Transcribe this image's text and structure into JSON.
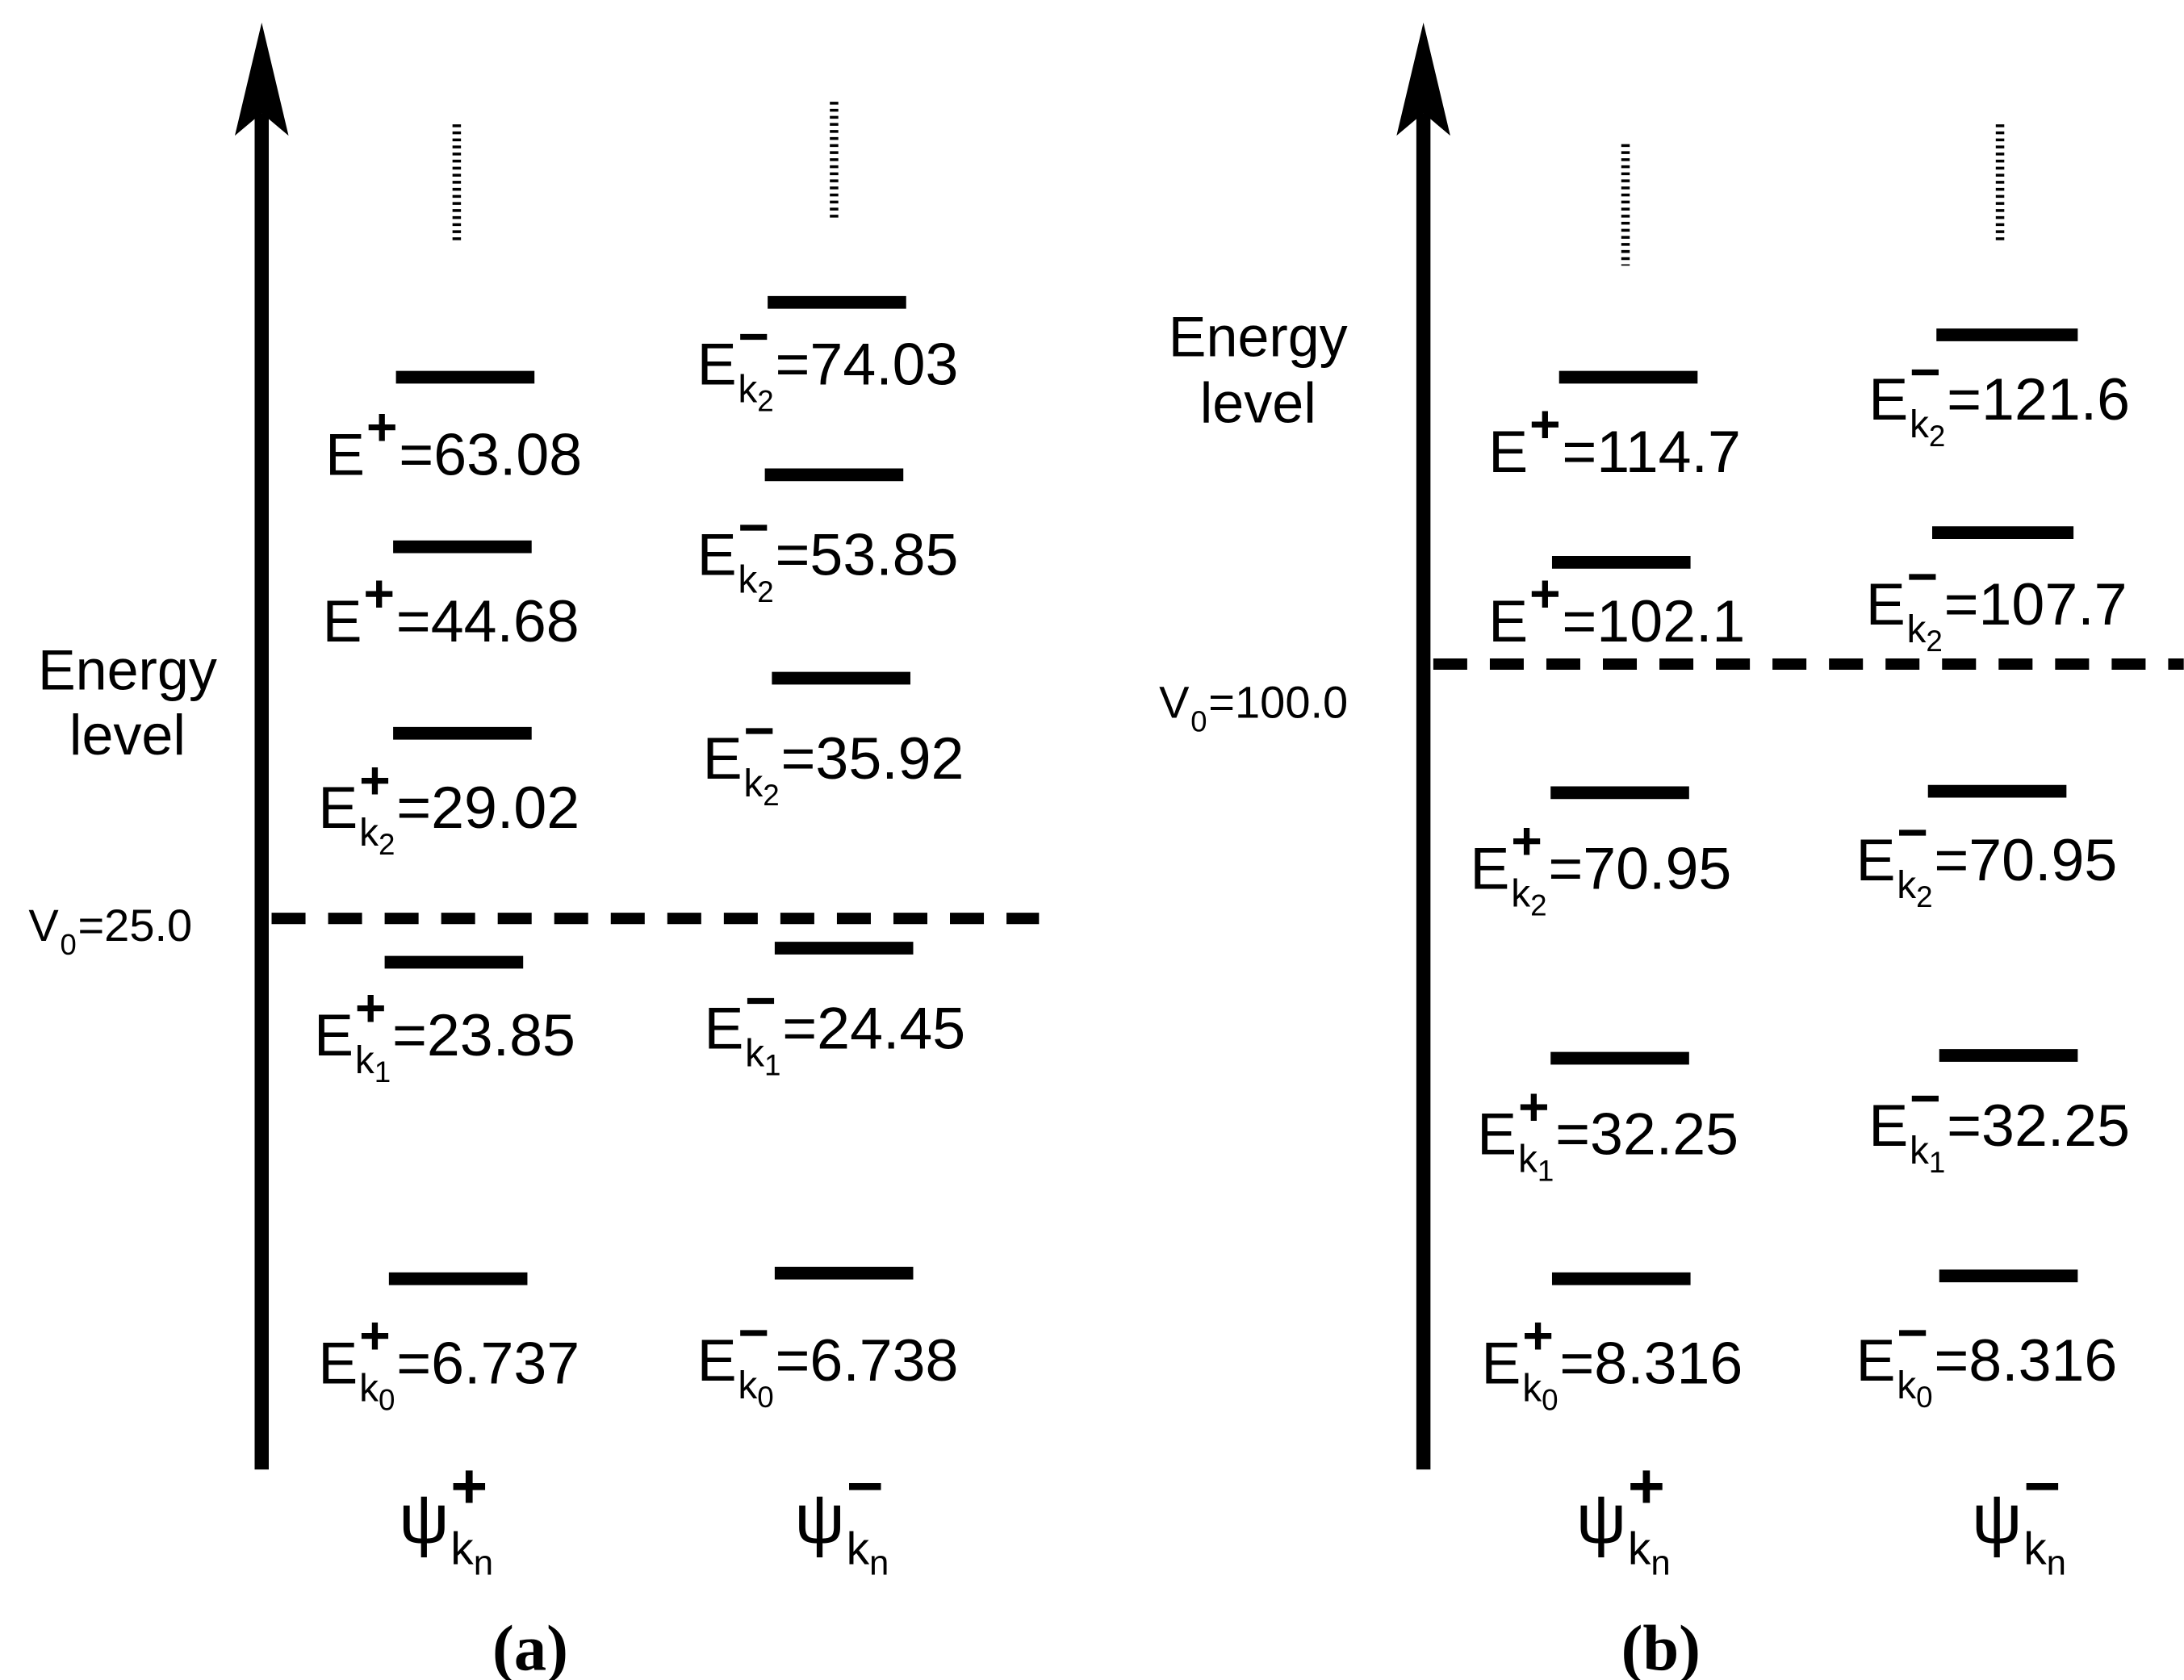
{
  "panels": [
    {
      "label": "(a)",
      "axis_label": [
        "Energy",
        "level"
      ],
      "potential": {
        "symbol": "V",
        "sub": "0",
        "value": "=25.0"
      },
      "columns": [
        {
          "header": {
            "symbol": "ψ",
            "sign": "+",
            "sub": "k",
            "subsub": "n"
          },
          "levels": [
            {
              "symbol": "E",
              "sign": "+",
              "value": "=63.08"
            },
            {
              "symbol": "E",
              "sign": "+",
              "value": "=44.68"
            },
            {
              "symbol": "E",
              "sign": "+",
              "sub": "k",
              "subsub": "2",
              "value": "=29.02"
            },
            {
              "symbol": "E",
              "sign": "+",
              "sub": "k",
              "subsub": "1",
              "value": "=23.85"
            },
            {
              "symbol": "E",
              "sign": "+",
              "sub": "k",
              "subsub": "0",
              "value": "=6.737"
            }
          ]
        },
        {
          "header": {
            "symbol": "ψ",
            "sign": "−",
            "sub": "k",
            "subsub": "n"
          },
          "levels": [
            {
              "symbol": "E",
              "sign": "−",
              "sub": "k",
              "subsub": "2",
              "value": "=74.03"
            },
            {
              "symbol": "E",
              "sign": "−",
              "sub": "k",
              "subsub": "2",
              "value": "=53.85"
            },
            {
              "symbol": "E",
              "sign": "−",
              "sub": "k",
              "subsub": "2",
              "value": "=35.92"
            },
            {
              "symbol": "E",
              "sign": "−",
              "sub": "k",
              "subsub": "1",
              "value": "=24.45"
            },
            {
              "symbol": "E",
              "sign": "−",
              "sub": "k",
              "subsub": "0",
              "value": "=6.738"
            }
          ]
        }
      ]
    },
    {
      "label": "(b)",
      "axis_label": [
        "Energy",
        "level"
      ],
      "potential": {
        "symbol": "V",
        "sub": "0",
        "value": "=100.0"
      },
      "columns": [
        {
          "header": {
            "symbol": "ψ",
            "sign": "+",
            "sub": "k",
            "subsub": "n"
          },
          "levels": [
            {
              "symbol": "E",
              "sign": "+",
              "value": "=114.7"
            },
            {
              "symbol": "E",
              "sign": "+",
              "value": "=102.1"
            },
            {
              "symbol": "E",
              "sign": "+",
              "sub": "k",
              "subsub": "2",
              "value": "=70.95"
            },
            {
              "symbol": "E",
              "sign": "+",
              "sub": "k",
              "subsub": "1",
              "value": "=32.25"
            },
            {
              "symbol": "E",
              "sign": "+",
              "sub": "k",
              "subsub": "0",
              "value": "=8.316"
            }
          ]
        },
        {
          "header": {
            "symbol": "ψ",
            "sign": "−",
            "sub": "k",
            "subsub": "n"
          },
          "levels": [
            {
              "symbol": "E",
              "sign": "−",
              "sub": "k",
              "subsub": "2",
              "value": "=121.6"
            },
            {
              "symbol": "E",
              "sign": "−",
              "sub": "k",
              "subsub": "2",
              "value": "=107.7"
            },
            {
              "symbol": "E",
              "sign": "−",
              "sub": "k",
              "subsub": "2",
              "value": "=70.95"
            },
            {
              "symbol": "E",
              "sign": "−",
              "sub": "k",
              "subsub": "1",
              "value": "=32.25"
            },
            {
              "symbol": "E",
              "sign": "−",
              "sub": "k",
              "subsub": "0",
              "value": "=8.316"
            }
          ]
        }
      ]
    }
  ]
}
